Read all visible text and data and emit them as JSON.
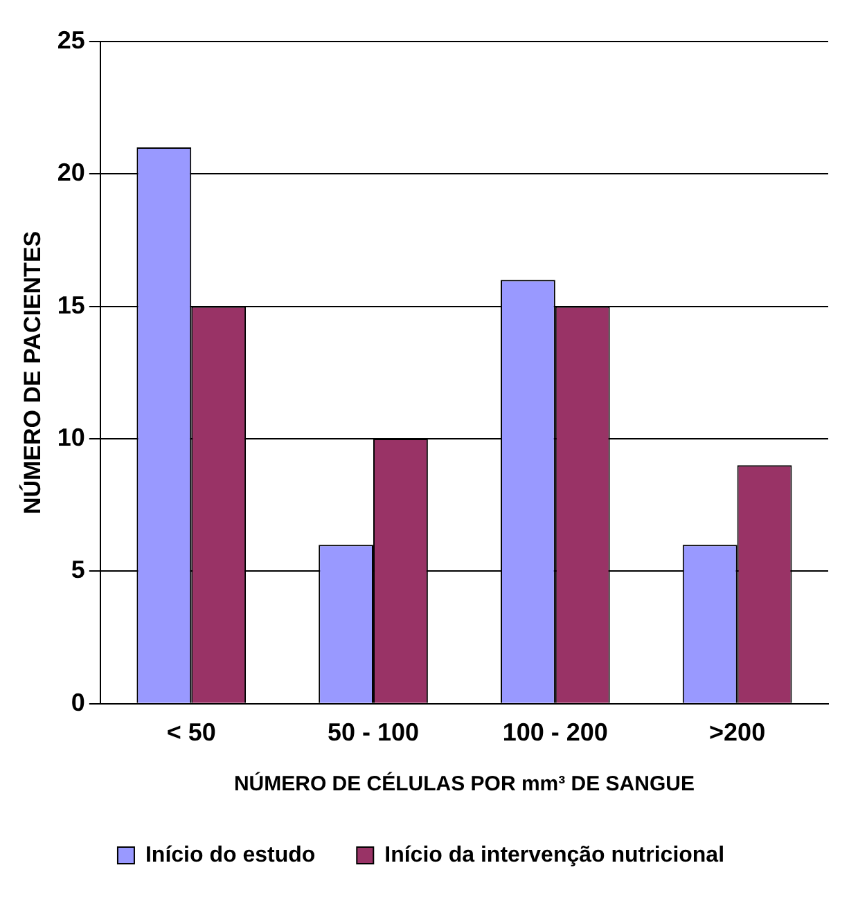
{
  "chart_data": {
    "type": "bar",
    "xlabel": "NÚMERO DE CÉLULAS POR mm³ DE SANGUE",
    "ylabel": "NÚMERO DE PACIENTES",
    "categories": [
      "< 50",
      "50 - 100",
      "100 - 200",
      ">200"
    ],
    "series": [
      {
        "name": "Início do estudo",
        "color": "#9999ff",
        "values": [
          21,
          6,
          16,
          6
        ]
      },
      {
        "name": "Início da intervenção nutricional",
        "color": "#993366",
        "values": [
          15,
          10,
          15,
          9
        ]
      }
    ],
    "ylim": [
      0,
      25
    ],
    "yticks": [
      0,
      5,
      10,
      15,
      20,
      25
    ],
    "grid": "y",
    "legend": "bottom"
  }
}
